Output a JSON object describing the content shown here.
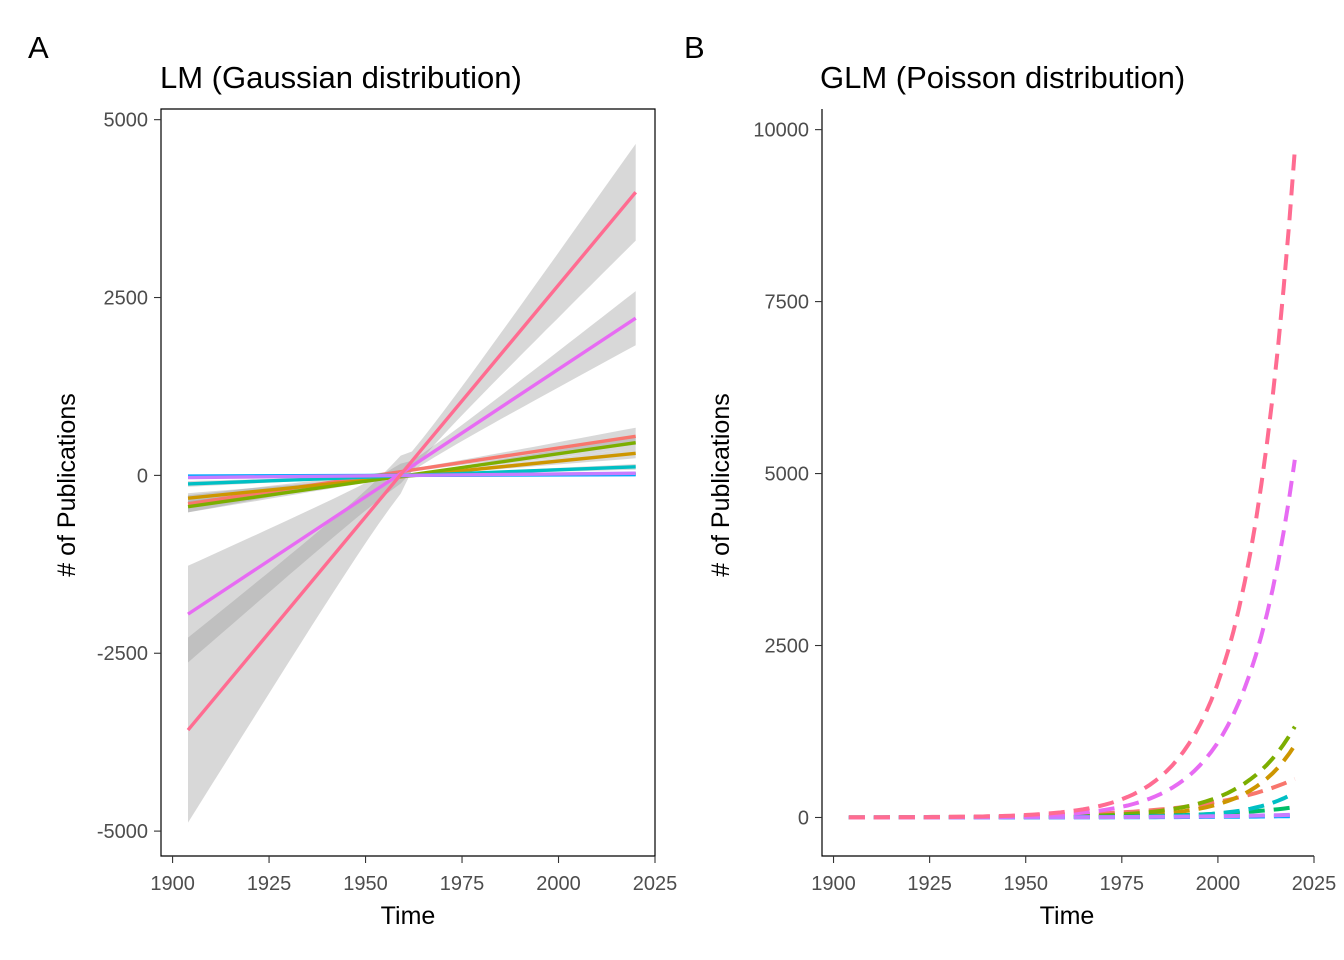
{
  "chart_data": [
    {
      "type": "line",
      "tag": "A",
      "title": "LM (Gaussian distribution)",
      "xlabel": "Time",
      "ylabel": "# of Publications",
      "xlim": [
        1897,
        2025
      ],
      "ylim": [
        -5350,
        5150
      ],
      "x_ticks": [
        1900,
        1925,
        1950,
        1975,
        2000,
        2025
      ],
      "x_tick_labels": [
        "1900",
        "1925",
        "1950",
        "1975",
        "2000",
        "2025"
      ],
      "y_ticks": [
        -5000,
        -2500,
        0,
        2500,
        5000
      ],
      "y_tick_labels": [
        "-5000",
        "-2500",
        "0",
        "2500",
        "5000"
      ],
      "grid": false,
      "legend": "none",
      "confidence_band": true,
      "series": [
        {
          "color": "#f8766d",
          "x": [
            1904,
            2020
          ],
          "y": [
            -400,
            550
          ],
          "band": [
            120,
            120
          ]
        },
        {
          "color": "#cd9600",
          "x": [
            1904,
            2020
          ],
          "y": [
            -320,
            310
          ],
          "band": [
            70,
            70
          ]
        },
        {
          "color": "#7cae00",
          "x": [
            1904,
            2020
          ],
          "y": [
            -440,
            460
          ],
          "band": [
            80,
            80
          ]
        },
        {
          "color": "#00be67",
          "x": [
            1904,
            2020
          ],
          "y": [
            -20,
            20
          ],
          "band": [
            15,
            15
          ]
        },
        {
          "color": "#00bfc4",
          "x": [
            1904,
            2020
          ],
          "y": [
            -120,
            120
          ],
          "band": [
            40,
            40
          ]
        },
        {
          "color": "#00a9ff",
          "x": [
            1904,
            2020
          ],
          "y": [
            -10,
            10
          ],
          "band": [
            10,
            10
          ]
        },
        {
          "color": "#c77cff",
          "x": [
            1904,
            2020
          ],
          "y": [
            -30,
            30
          ],
          "band": [
            20,
            20
          ]
        },
        {
          "color": "#e76bf3",
          "x": [
            1904,
            2020
          ],
          "y": [
            -1950,
            2210
          ],
          "band": [
            680,
            380
          ]
        },
        {
          "color": "#ff6c91",
          "x": [
            1904,
            2020
          ],
          "y": [
            -3580,
            3980
          ],
          "band": [
            1300,
            680
          ]
        }
      ]
    },
    {
      "type": "line",
      "tag": "B",
      "title": "GLM (Poisson distribution)",
      "xlabel": "Time",
      "ylabel": "# of Publications",
      "xlim": [
        1897,
        2025
      ],
      "ylim": [
        -560,
        10300
      ],
      "x_ticks": [
        1900,
        1925,
        1950,
        1975,
        2000,
        2025
      ],
      "x_tick_labels": [
        "1900",
        "1925",
        "1950",
        "1975",
        "2000",
        "2025"
      ],
      "y_ticks": [
        0,
        2500,
        5000,
        7500,
        10000
      ],
      "y_tick_labels": [
        "0",
        "2500",
        "5000",
        "7500",
        "10000"
      ],
      "grid": false,
      "legend": "none",
      "line_style": "dashed",
      "x_range": [
        1904,
        2020
      ],
      "series": [
        {
          "color": "#f8766d",
          "end_value": 560,
          "growth_rate": 0.045
        },
        {
          "color": "#cd9600",
          "end_value": 1050,
          "growth_rate": 0.085
        },
        {
          "color": "#7cae00",
          "end_value": 1320,
          "growth_rate": 0.075
        },
        {
          "color": "#00be67",
          "end_value": 150,
          "growth_rate": 0.05
        },
        {
          "color": "#00bfc4",
          "end_value": 360,
          "growth_rate": 0.09
        },
        {
          "color": "#00a9ff",
          "end_value": 20,
          "growth_rate": 0.04
        },
        {
          "color": "#c77cff",
          "end_value": 40,
          "growth_rate": 0.04
        },
        {
          "color": "#e76bf3",
          "end_value": 5200,
          "growth_rate": 0.078
        },
        {
          "color": "#ff6c91",
          "end_value": 9700,
          "growth_rate": 0.08
        }
      ]
    }
  ]
}
